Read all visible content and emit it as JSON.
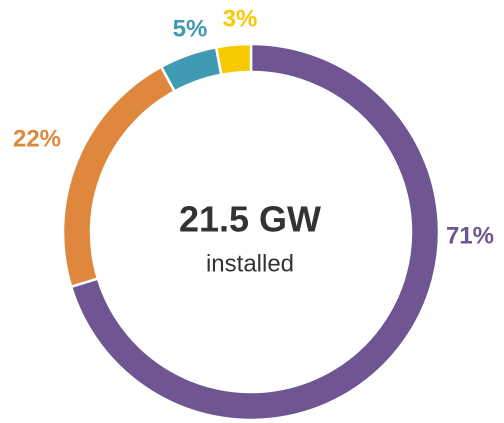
{
  "chart_data": {
    "type": "donut",
    "center_title": "21.5 GW",
    "center_subtitle": "installed",
    "categories": [
      null,
      null,
      null,
      null
    ],
    "values": [
      71,
      22,
      5,
      3
    ],
    "value_labels": [
      "71%",
      "22%",
      "5%",
      "3%"
    ],
    "colors": [
      "#6f5591",
      "#df873c",
      "#3f9ab2",
      "#f6c900"
    ]
  }
}
